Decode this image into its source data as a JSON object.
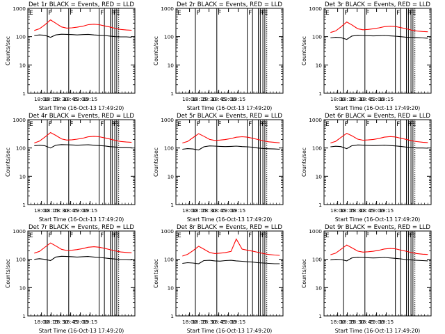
{
  "chart_data": [
    {
      "type": "line",
      "title": "Det 1r BLACK = Events, RED = LLD",
      "xlabel": "Start Time (16-Oct-13 17:49:20)",
      "ylabel": "Counts/sec",
      "x_ticks": [
        "18:00",
        "18:15",
        "18:30",
        "18:45",
        "19:00",
        "19:15"
      ],
      "y_ticks": [
        "1",
        "10",
        "100",
        "1000"
      ],
      "ylim": [
        1,
        1000
      ],
      "yscale": "log",
      "series": [
        {
          "name": "BLACK = Events",
          "color": "#000000",
          "x_min": [
            0,
            8,
            16,
            25,
            33,
            42,
            50,
            58,
            66,
            75,
            83,
            92,
            100,
            108,
            116,
            125,
            133,
            142,
            150
          ],
          "values": [
            110,
            115,
            112,
            95,
            115,
            122,
            120,
            118,
            115,
            118,
            120,
            115,
            112,
            110,
            105,
            100,
            98,
            98,
            95
          ]
        },
        {
          "name": "RED = LLD",
          "color": "#ff0000",
          "x_min": [
            0,
            8,
            16,
            25,
            33,
            42,
            50,
            58,
            66,
            75,
            83,
            92,
            100,
            108,
            116,
            125,
            133,
            142,
            150
          ],
          "values": [
            165,
            190,
            260,
            390,
            300,
            220,
            200,
            205,
            215,
            235,
            265,
            275,
            265,
            240,
            220,
            195,
            180,
            172,
            168
          ]
        }
      ]
    },
    {
      "type": "line",
      "title": "Det 2r BLACK = Events, RED = LLD",
      "xlabel": "Start Time (16-Oct-13 17:49:20)",
      "ylabel": "Counts/sec",
      "x_ticks": [
        "18:00",
        "18:15",
        "18:30",
        "18:45",
        "19:00",
        "19:15"
      ],
      "y_ticks": [
        "1",
        "10",
        "100",
        "1000"
      ],
      "ylim": [
        1,
        1000
      ],
      "yscale": "log",
      "series": []
    },
    {
      "type": "line",
      "title": "Det 3r BLACK = Events, RED = LLD",
      "xlabel": "Start Time (16-Oct-13 17:49:20)",
      "ylabel": "Counts/sec",
      "x_ticks": [
        "18:00",
        "18:15",
        "18:30",
        "18:45",
        "19:00",
        "19:15"
      ],
      "y_ticks": [
        "1",
        "10",
        "100",
        "1000"
      ],
      "ylim": [
        1,
        1000
      ],
      "yscale": "log",
      "series": [
        {
          "name": "BLACK = Events",
          "color": "#000000",
          "x_min": [
            0,
            8,
            16,
            25,
            33,
            42,
            50,
            58,
            66,
            75,
            83,
            92,
            100,
            108,
            116,
            125,
            133,
            142,
            150
          ],
          "values": [
            90,
            95,
            92,
            80,
            105,
            112,
            110,
            108,
            106,
            108,
            110,
            106,
            104,
            100,
            96,
            94,
            92,
            90,
            88
          ]
        },
        {
          "name": "RED = LLD",
          "color": "#ff0000",
          "x_min": [
            0,
            8,
            16,
            25,
            33,
            42,
            50,
            58,
            66,
            75,
            83,
            92,
            100,
            108,
            116,
            125,
            133,
            142,
            150
          ],
          "values": [
            140,
            160,
            220,
            330,
            260,
            190,
            175,
            180,
            190,
            205,
            225,
            235,
            228,
            208,
            192,
            170,
            158,
            152,
            148
          ]
        }
      ]
    },
    {
      "type": "line",
      "title": "Det 4r BLACK = Events, RED = LLD",
      "xlabel": "Start Time (16-Oct-13 17:49:20)",
      "ylabel": "Counts/sec",
      "x_ticks": [
        "18:00",
        "18:15",
        "18:30",
        "18:45",
        "19:00",
        "19:15"
      ],
      "y_ticks": [
        "1",
        "10",
        "100",
        "1000"
      ],
      "ylim": [
        1,
        1000
      ],
      "yscale": "log",
      "series": [
        {
          "name": "BLACK = Events",
          "color": "#000000",
          "x_min": [
            0,
            8,
            16,
            25,
            33,
            42,
            50,
            58,
            66,
            75,
            83,
            92,
            100,
            108,
            116,
            125,
            133,
            142,
            150
          ],
          "values": [
            120,
            125,
            120,
            100,
            125,
            132,
            130,
            128,
            125,
            128,
            130,
            125,
            122,
            118,
            112,
            108,
            105,
            105,
            102
          ]
        },
        {
          "name": "RED = LLD",
          "color": "#ff0000",
          "x_min": [
            0,
            8,
            16,
            25,
            33,
            42,
            50,
            58,
            66,
            75,
            83,
            92,
            100,
            108,
            116,
            125,
            133,
            142,
            150
          ],
          "values": [
            150,
            175,
            240,
            350,
            280,
            210,
            190,
            195,
            205,
            222,
            248,
            258,
            250,
            228,
            208,
            185,
            170,
            162,
            158
          ]
        }
      ]
    },
    {
      "type": "line",
      "title": "Det 5r BLACK = Events, RED = LLD",
      "xlabel": "Start Time (16-Oct-13 17:49:20)",
      "ylabel": "Counts/sec",
      "x_ticks": [
        "18:00",
        "18:15",
        "18:30",
        "18:45",
        "19:00",
        "19:15"
      ],
      "y_ticks": [
        "1",
        "10",
        "100",
        "1000"
      ],
      "ylim": [
        1,
        1000
      ],
      "yscale": "log",
      "series": [
        {
          "name": "BLACK = Events",
          "color": "#000000",
          "x_min": [
            0,
            8,
            16,
            25,
            33,
            42,
            50,
            58,
            66,
            75,
            83,
            92,
            100,
            108,
            116,
            125,
            133,
            142,
            150
          ],
          "values": [
            90,
            95,
            92,
            85,
            110,
            118,
            116,
            114,
            112,
            114,
            116,
            112,
            110,
            106,
            100,
            96,
            94,
            92,
            90
          ]
        },
        {
          "name": "RED = LLD",
          "color": "#ff0000",
          "x_min": [
            0,
            8,
            16,
            25,
            33,
            42,
            50,
            58,
            66,
            75,
            83,
            92,
            100,
            108,
            116,
            125,
            133,
            142,
            150
          ],
          "values": [
            150,
            170,
            230,
            320,
            260,
            200,
            185,
            190,
            198,
            215,
            240,
            250,
            242,
            220,
            200,
            178,
            165,
            158,
            152
          ]
        }
      ]
    },
    {
      "type": "line",
      "title": "Det 6r BLACK = Events, RED = LLD",
      "xlabel": "Start Time (16-Oct-13 17:49:20)",
      "ylabel": "Counts/sec",
      "x_ticks": [
        "18:00",
        "18:15",
        "18:30",
        "18:45",
        "19:00",
        "19:15"
      ],
      "y_ticks": [
        "1",
        "10",
        "100",
        "1000"
      ],
      "ylim": [
        1,
        1000
      ],
      "yscale": "log",
      "series": [
        {
          "name": "BLACK = Events",
          "color": "#000000",
          "x_min": [
            0,
            8,
            16,
            25,
            33,
            42,
            50,
            58,
            66,
            75,
            83,
            92,
            100,
            108,
            116,
            125,
            133,
            142,
            150
          ],
          "values": [
            110,
            115,
            112,
            95,
            120,
            128,
            126,
            124,
            122,
            124,
            126,
            122,
            118,
            114,
            108,
            104,
            100,
            100,
            98
          ]
        },
        {
          "name": "RED = LLD",
          "color": "#ff0000",
          "x_min": [
            0,
            8,
            16,
            25,
            33,
            42,
            50,
            58,
            66,
            75,
            83,
            92,
            100,
            108,
            116,
            125,
            133,
            142,
            150
          ],
          "values": [
            150,
            172,
            235,
            330,
            270,
            205,
            188,
            192,
            200,
            218,
            242,
            252,
            245,
            222,
            202,
            180,
            168,
            160,
            155
          ]
        }
      ]
    },
    {
      "type": "line",
      "title": "Det 7r BLACK = Events, RED = LLD",
      "xlabel": "Start Time (16-Oct-13 17:49:20)",
      "ylabel": "Counts/sec",
      "x_ticks": [
        "18:00",
        "18:15",
        "18:30",
        "18:45",
        "19:00",
        "19:15"
      ],
      "y_ticks": [
        "1",
        "10",
        "100",
        "1000"
      ],
      "ylim": [
        1,
        1000
      ],
      "yscale": "log",
      "series": [
        {
          "name": "BLACK = Events",
          "color": "#000000",
          "x_min": [
            0,
            8,
            16,
            25,
            33,
            42,
            50,
            58,
            66,
            75,
            83,
            92,
            100,
            108,
            116,
            125,
            133,
            142,
            150
          ],
          "values": [
            100,
            105,
            100,
            90,
            120,
            128,
            126,
            124,
            120,
            124,
            126,
            120,
            116,
            112,
            106,
            102,
            98,
            98,
            95
          ]
        },
        {
          "name": "RED = LLD",
          "color": "#ff0000",
          "x_min": [
            0,
            8,
            16,
            25,
            33,
            42,
            50,
            58,
            66,
            75,
            83,
            92,
            100,
            108,
            116,
            125,
            133,
            142,
            150
          ],
          "values": [
            165,
            190,
            265,
            380,
            300,
            225,
            205,
            210,
            220,
            240,
            268,
            278,
            268,
            245,
            222,
            198,
            182,
            175,
            170
          ]
        }
      ]
    },
    {
      "type": "line",
      "title": "Det 8r BLACK = Events, RED = LLD",
      "xlabel": "Start Time (16-Oct-13 17:49:20)",
      "ylabel": "Counts/sec",
      "x_ticks": [
        "18:00",
        "18:15",
        "18:30",
        "18:45",
        "19:00",
        "19:15"
      ],
      "y_ticks": [
        "1",
        "10",
        "100",
        "1000"
      ],
      "ylim": [
        1,
        1000
      ],
      "yscale": "log",
      "series": [
        {
          "name": "BLACK = Events",
          "color": "#000000",
          "x_min": [
            0,
            8,
            16,
            25,
            33,
            42,
            50,
            58,
            66,
            75,
            83,
            92,
            100,
            108,
            116,
            125,
            133,
            142,
            150
          ],
          "values": [
            72,
            76,
            74,
            70,
            90,
            92,
            88,
            86,
            90,
            92,
            88,
            85,
            82,
            80,
            76,
            74,
            72,
            70,
            70
          ]
        },
        {
          "name": "RED = LLD",
          "color": "#ff0000",
          "x_min": [
            0,
            8,
            16,
            25,
            33,
            42,
            50,
            58,
            66,
            75,
            83,
            92,
            100,
            108,
            116,
            125,
            133,
            142,
            150
          ],
          "values": [
            130,
            150,
            200,
            290,
            230,
            175,
            160,
            165,
            172,
            190,
            520,
            230,
            210,
            195,
            178,
            160,
            148,
            142,
            138
          ]
        }
      ]
    },
    {
      "type": "line",
      "title": "Det 9r BLACK = Events, RED = LLD",
      "xlabel": "Start Time (16-Oct-13 17:49:20)",
      "ylabel": "Counts/sec",
      "x_ticks": [
        "18:00",
        "18:15",
        "18:30",
        "18:45",
        "19:00",
        "19:15"
      ],
      "y_ticks": [
        "1",
        "10",
        "100",
        "1000"
      ],
      "ylim": [
        1,
        1000
      ],
      "yscale": "log",
      "series": [
        {
          "name": "BLACK = Events",
          "color": "#000000",
          "x_min": [
            0,
            8,
            16,
            25,
            33,
            42,
            50,
            58,
            66,
            75,
            83,
            92,
            100,
            108,
            116,
            125,
            133,
            142,
            150
          ],
          "values": [
            95,
            100,
            98,
            88,
            112,
            118,
            116,
            114,
            112,
            114,
            116,
            112,
            108,
            104,
            98,
            95,
            92,
            90,
            88
          ]
        },
        {
          "name": "RED = LLD",
          "color": "#ff0000",
          "x_min": [
            0,
            8,
            16,
            25,
            33,
            42,
            50,
            58,
            66,
            75,
            83,
            92,
            100,
            108,
            116,
            125,
            133,
            142,
            150
          ],
          "values": [
            145,
            165,
            225,
            320,
            255,
            195,
            180,
            185,
            192,
            210,
            232,
            242,
            235,
            212,
            195,
            172,
            160,
            152,
            148
          ]
        }
      ]
    }
  ],
  "flag_lines": {
    "solid_min": [
      20,
      53,
      100,
      108,
      117,
      120,
      124,
      127
    ],
    "dotted_min": [
      130
    ],
    "labels": [
      {
        "text": "F",
        "at_min": 20
      },
      {
        "text": "F",
        "at_min": 53
      },
      {
        "text": "F",
        "at_min": 100
      },
      {
        "text": "F",
        "at_min": 117
      },
      {
        "text": "F",
        "at_min": 120
      },
      {
        "text": "E",
        "at_min": 124
      }
    ],
    "left_label": "E"
  }
}
